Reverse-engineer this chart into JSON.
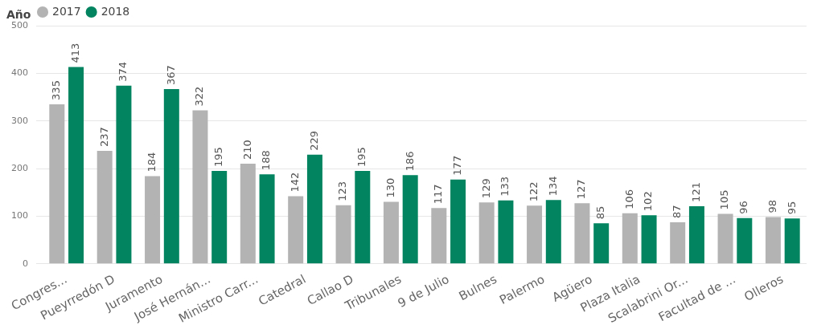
{
  "chart_data": {
    "type": "bar",
    "legend_title": "Año",
    "legend": "top left",
    "grid": "y",
    "data_labels": true,
    "categories": [
      "Congres...",
      "Pueyrredón D",
      "Juramento",
      "José Hernán...",
      "Ministro Carr...",
      "Catedral",
      "Callao D",
      "Tribunales",
      "9 de Julio",
      "Bulnes",
      "Palermo",
      "Agüero",
      "Plaza Italia",
      "Scalabrini Or...",
      "Facultad de ...",
      "Olleros"
    ],
    "series": [
      {
        "name": "2017",
        "color": "#b3b3b3",
        "values": [
          335,
          237,
          184,
          322,
          210,
          142,
          123,
          130,
          117,
          129,
          122,
          127,
          106,
          87,
          105,
          98
        ]
      },
      {
        "name": "2018",
        "color": "#01845f",
        "values": [
          413,
          374,
          367,
          195,
          188,
          229,
          195,
          186,
          177,
          133,
          134,
          85,
          102,
          121,
          96,
          95
        ]
      }
    ],
    "ylim": [
      0,
      500
    ],
    "yticks": [
      0,
      100,
      200,
      300,
      400,
      500
    ]
  }
}
